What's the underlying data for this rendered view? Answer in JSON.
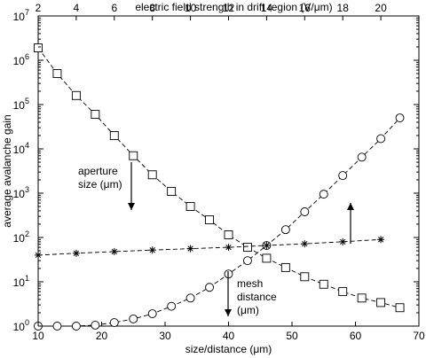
{
  "chart_data": {
    "type": "line",
    "xlabel": "size/distance (μm)",
    "x2label": "electric field strength in drift region (V/μm)",
    "ylabel": "average avalanche gain",
    "xlim": [
      10,
      70
    ],
    "x2lim": [
      2,
      22
    ],
    "ylim": [
      1,
      10000000
    ],
    "yscale": "log",
    "x_ticks": [
      10,
      20,
      30,
      40,
      50,
      60,
      70
    ],
    "x2_ticks": [
      2,
      4,
      6,
      8,
      10,
      12,
      14,
      16,
      18,
      20
    ],
    "y_tick_labels": [
      {
        "base": "10",
        "exp": "0"
      },
      {
        "base": "10",
        "exp": "1"
      },
      {
        "base": "10",
        "exp": "2"
      },
      {
        "base": "10",
        "exp": "3"
      },
      {
        "base": "10",
        "exp": "4"
      },
      {
        "base": "10",
        "exp": "5"
      },
      {
        "base": "10",
        "exp": "6"
      },
      {
        "base": "10",
        "exp": "7"
      }
    ],
    "grid": false,
    "series": [
      {
        "marker": "square",
        "line_style": "dashed",
        "x": [
          10,
          13,
          16,
          19,
          22,
          25,
          28,
          31,
          34,
          37,
          40,
          43,
          46,
          49,
          52,
          55,
          58,
          61,
          64,
          67
        ],
        "y": [
          1900000,
          500000,
          160000,
          60000,
          20000,
          7000,
          2600,
          1100,
          500,
          250,
          115,
          60,
          34,
          21,
          13,
          8.8,
          6,
          4.3,
          3.4,
          2.6
        ]
      },
      {
        "marker": "circle",
        "line_style": "dashed",
        "x": [
          10,
          13,
          16,
          19,
          22,
          25,
          28,
          31,
          34,
          37,
          40,
          43,
          46,
          49,
          52,
          55,
          58,
          61,
          64,
          67
        ],
        "y": [
          1,
          1,
          1,
          1.05,
          1.2,
          1.45,
          1.9,
          2.8,
          4.3,
          7.5,
          15,
          30,
          66,
          150,
          380,
          950,
          2500,
          6500,
          17000,
          50000
        ]
      },
      {
        "marker": "asterisk",
        "line_style": "dashed",
        "axis": "top",
        "x": [
          2,
          4,
          6,
          8,
          10,
          12,
          14,
          16,
          18,
          20
        ],
        "y": [
          40,
          44,
          48,
          52,
          56,
          60,
          66,
          72,
          80,
          90
        ]
      }
    ],
    "annotations": [
      {
        "lines": [
          "aperture",
          "size (μm)"
        ],
        "arrow": "down"
      },
      {
        "lines": [
          "mesh",
          "distance",
          "(μm)"
        ],
        "arrow": "down"
      },
      {
        "lines": [],
        "arrow": "up"
      }
    ]
  }
}
